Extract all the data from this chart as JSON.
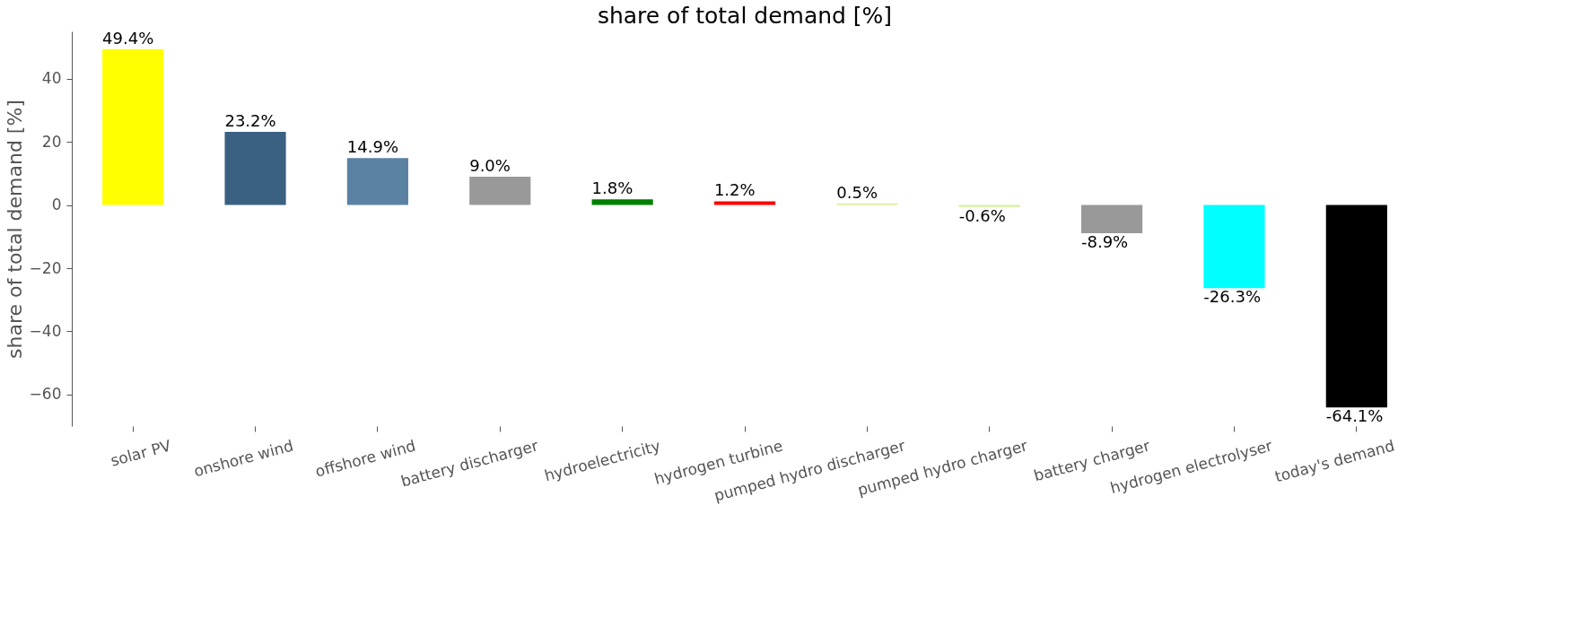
{
  "chart_data": {
    "type": "bar",
    "title": "share of total demand [%]",
    "ylabel": "share of total demand [%]",
    "categories": [
      "solar PV",
      "onshore wind",
      "offshore wind",
      "battery discharger",
      "hydroelectricity",
      "hydrogen turbine",
      "pumped hydro discharger",
      "pumped hydro charger",
      "battery charger",
      "hydrogen electrolyser",
      "today's demand"
    ],
    "values": [
      49.4,
      23.2,
      14.9,
      9.0,
      1.8,
      1.2,
      0.5,
      -0.6,
      -8.9,
      -26.3,
      -64.1
    ],
    "colors": [
      "#ffff00",
      "#3b6182",
      "#5b82a3",
      "#999999",
      "#008000",
      "#ff0000",
      "#d4f29b",
      "#d4f29b",
      "#999999",
      "#00ffff",
      "#000000"
    ],
    "value_labels": [
      "49.4%",
      "23.2%",
      "14.9%",
      "9.0%",
      "1.8%",
      "1.2%",
      "0.5%",
      "-0.6%",
      "-8.9%",
      "-26.3%",
      "-64.1%"
    ],
    "ylim": [
      -70,
      55
    ],
    "yticks": [
      -60,
      -40,
      -20,
      0,
      20,
      40
    ],
    "grid": false
  }
}
